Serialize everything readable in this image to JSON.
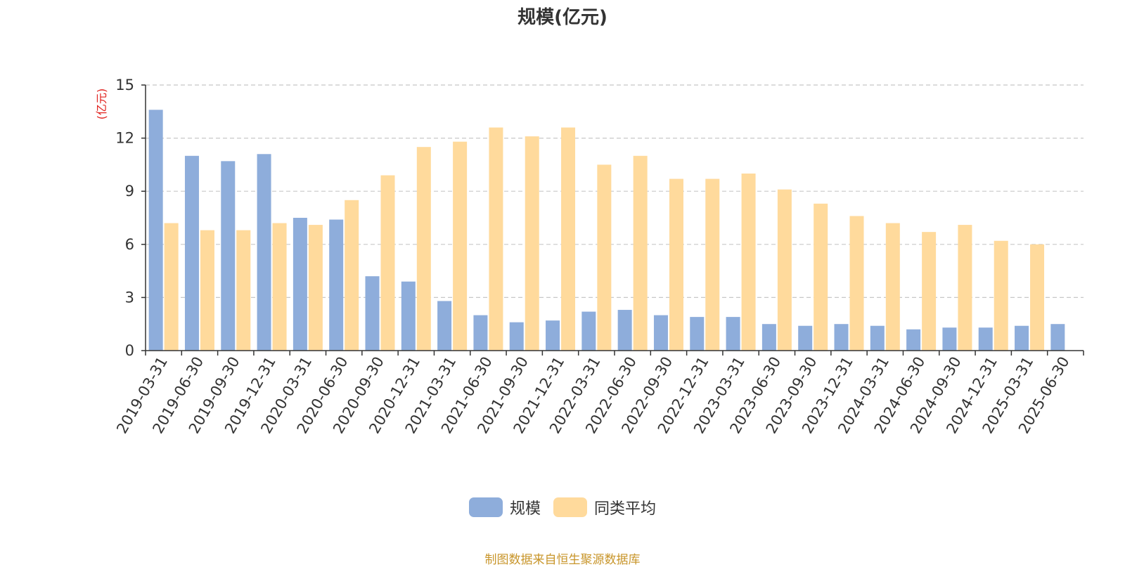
{
  "chart_data": {
    "type": "bar",
    "title": "规模(亿元)",
    "ylabel": "(亿元)",
    "ylim": [
      0,
      15
    ],
    "yticks": [
      0,
      3,
      6,
      9,
      12,
      15
    ],
    "grid": true,
    "legend_position": "bottom",
    "categories": [
      "2019-03-31",
      "2019-06-30",
      "2019-09-30",
      "2019-12-31",
      "2020-03-31",
      "2020-06-30",
      "2020-09-30",
      "2020-12-31",
      "2021-03-31",
      "2021-06-30",
      "2021-09-30",
      "2021-12-31",
      "2022-03-31",
      "2022-06-30",
      "2022-09-30",
      "2022-12-31",
      "2023-03-31",
      "2023-06-30",
      "2023-09-30",
      "2023-12-31",
      "2024-03-31",
      "2024-06-30",
      "2024-09-30",
      "2024-12-31",
      "2025-03-31",
      "2025-06-30"
    ],
    "series": [
      {
        "name": "规模",
        "color": "#8eaddb",
        "values": [
          13.6,
          11.0,
          10.7,
          11.1,
          7.5,
          7.4,
          4.2,
          3.9,
          2.8,
          2.0,
          1.6,
          1.7,
          2.2,
          2.3,
          2.0,
          1.9,
          1.9,
          1.5,
          1.4,
          1.5,
          1.4,
          1.2,
          1.3,
          1.3,
          1.4,
          1.5
        ]
      },
      {
        "name": "同类平均",
        "color": "#ffda9c",
        "values": [
          7.2,
          6.8,
          6.8,
          7.2,
          7.1,
          8.5,
          9.9,
          11.5,
          11.8,
          12.6,
          12.1,
          12.6,
          10.5,
          11.0,
          9.7,
          9.7,
          10.0,
          9.1,
          8.3,
          7.6,
          7.2,
          6.7,
          7.1,
          6.2,
          6.0,
          null
        ]
      }
    ]
  },
  "source_text": "制图数据来自恒生聚源数据库",
  "colors": {
    "axis": "#333333",
    "grid": "#c8c8c8",
    "ylabel": "#e0201c",
    "source": "#c8952a"
  }
}
